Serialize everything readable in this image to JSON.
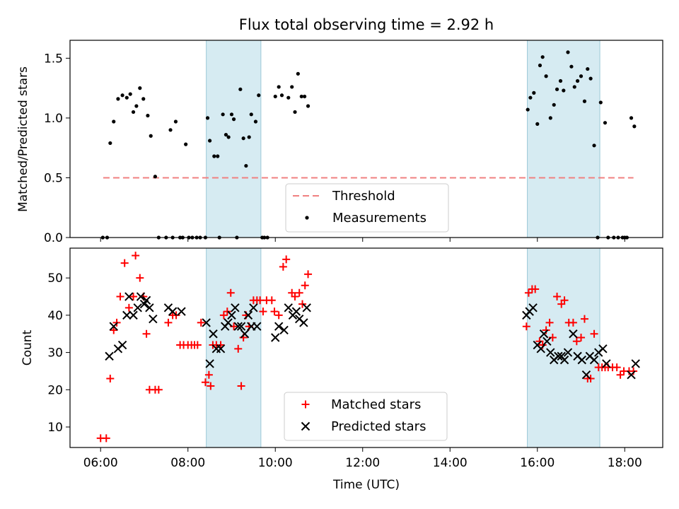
{
  "chart_data": [
    {
      "type": "scatter",
      "title": "Flux total observing time = 2.92 h",
      "xlabel": "",
      "ylabel": "Matched/Predicted stars",
      "xlim": [
        5.3,
        18.87
      ],
      "ylim": [
        0,
        1.65
      ],
      "yticks": [
        0.0,
        0.5,
        1.0,
        1.5
      ],
      "ytick_labels": [
        "0.0",
        "0.5",
        "1.0",
        "1.5"
      ],
      "shaded_spans": [
        [
          8.42,
          9.67
        ],
        [
          15.77,
          17.43
        ]
      ],
      "legend_placement": "lower-center",
      "series": [
        {
          "name": "Threshold",
          "style": "dashed-line",
          "color": "#f08080",
          "x": [
            6.06,
            18.2
          ],
          "y": [
            0.5,
            0.5
          ]
        },
        {
          "name": "Measurements",
          "style": "dot",
          "color": "#000000",
          "x": [
            6.05,
            6.15,
            6.22,
            6.3,
            6.4,
            6.5,
            6.6,
            6.68,
            6.75,
            6.82,
            6.9,
            6.98,
            7.08,
            7.15,
            7.25,
            7.33,
            7.5,
            7.6,
            7.65,
            7.72,
            7.82,
            7.88,
            7.95,
            8.02,
            8.1,
            8.2,
            8.28,
            8.4,
            8.45,
            8.5,
            8.6,
            8.68,
            8.72,
            8.8,
            8.87,
            8.93,
            9.0,
            9.05,
            9.12,
            9.2,
            9.27,
            9.33,
            9.4,
            9.45,
            9.55,
            9.62,
            9.7,
            9.75,
            9.82,
            10.0,
            10.08,
            10.15,
            10.3,
            10.38,
            10.45,
            10.52,
            10.6,
            10.67,
            10.75,
            15.78,
            15.84,
            15.92,
            16.0,
            16.06,
            16.12,
            16.2,
            16.3,
            16.38,
            16.45,
            16.53,
            16.6,
            16.7,
            16.78,
            16.85,
            16.92,
            17.0,
            17.08,
            17.15,
            17.22,
            17.3,
            17.38,
            17.45,
            17.55,
            17.62,
            17.75,
            17.85,
            17.95,
            18.0,
            18.05,
            18.15,
            18.22
          ],
          "y": [
            0.0,
            0.0,
            0.79,
            0.97,
            1.16,
            1.19,
            1.17,
            1.2,
            1.05,
            1.1,
            1.25,
            1.16,
            1.02,
            0.85,
            0.51,
            0.0,
            0.0,
            0.9,
            0.0,
            0.97,
            0.0,
            0.0,
            0.78,
            0.0,
            0.0,
            0.0,
            0.0,
            0.0,
            1.0,
            0.81,
            0.68,
            0.68,
            0.0,
            1.03,
            0.86,
            0.84,
            1.03,
            0.99,
            0.0,
            1.24,
            0.83,
            0.6,
            0.84,
            1.03,
            0.97,
            1.19,
            0.0,
            0.0,
            0.0,
            1.18,
            1.26,
            1.19,
            1.17,
            1.26,
            1.05,
            1.37,
            1.18,
            1.18,
            1.1,
            1.07,
            1.17,
            1.21,
            0.95,
            1.44,
            1.51,
            1.35,
            1.0,
            1.11,
            1.24,
            1.31,
            1.23,
            1.55,
            1.43,
            1.26,
            1.31,
            1.35,
            1.14,
            1.41,
            1.33,
            0.77,
            0.0,
            1.13,
            0.96,
            0.0,
            0.0,
            0.0,
            0.0,
            0.0,
            0.0,
            1.0,
            0.93
          ]
        }
      ]
    },
    {
      "type": "scatter",
      "title": "",
      "xlabel": "Time (UTC)",
      "ylabel": "Count",
      "xlim": [
        5.3,
        18.87
      ],
      "ylim": [
        4.5,
        58
      ],
      "yticks": [
        10,
        20,
        30,
        40,
        50
      ],
      "ytick_labels": [
        "10",
        "20",
        "30",
        "40",
        "50"
      ],
      "xticks": [
        6,
        8,
        10,
        12,
        14,
        16,
        18
      ],
      "xtick_labels": [
        "06:00",
        "08:00",
        "10:00",
        "12:00",
        "14:00",
        "16:00",
        "18:00"
      ],
      "shaded_spans": [
        [
          8.42,
          9.67
        ],
        [
          15.77,
          17.43
        ]
      ],
      "legend_placement": "lower-center",
      "series": [
        {
          "name": "Matched stars",
          "style": "plus",
          "color": "#ff0000",
          "x": [
            6.0,
            6.13,
            6.22,
            6.3,
            6.37,
            6.45,
            6.55,
            6.65,
            6.75,
            6.8,
            6.9,
            6.98,
            7.05,
            7.12,
            7.25,
            7.33,
            7.55,
            7.65,
            7.73,
            7.82,
            7.9,
            8.0,
            8.08,
            8.15,
            8.22,
            8.3,
            8.4,
            8.48,
            8.52,
            8.57,
            8.65,
            8.75,
            8.82,
            8.9,
            8.98,
            9.05,
            9.15,
            9.22,
            9.27,
            9.33,
            9.4,
            9.5,
            9.58,
            9.65,
            9.72,
            9.8,
            9.92,
            9.98,
            10.08,
            10.18,
            10.25,
            10.38,
            10.45,
            10.55,
            10.62,
            10.68,
            10.75,
            15.75,
            15.8,
            15.88,
            15.95,
            16.05,
            16.12,
            16.2,
            16.28,
            16.35,
            16.45,
            16.55,
            16.62,
            16.72,
            16.82,
            16.9,
            17.0,
            17.08,
            17.15,
            17.22,
            17.3,
            17.4,
            17.48,
            17.55,
            17.62,
            17.72,
            17.82,
            17.9,
            17.98,
            18.1,
            18.2
          ],
          "y": [
            7,
            7,
            23,
            36,
            38,
            45,
            54,
            42,
            45,
            56,
            50,
            45,
            35,
            20,
            20,
            20,
            38,
            40,
            40,
            32,
            32,
            32,
            32,
            32,
            32,
            38,
            22,
            24,
            21,
            32,
            32,
            32,
            40,
            41,
            46,
            37,
            31,
            21,
            34,
            40,
            37,
            44,
            44,
            44,
            41,
            44,
            44,
            41,
            40,
            53,
            55,
            46,
            45,
            46,
            43,
            48,
            51,
            37,
            46,
            47,
            47,
            33,
            32,
            36,
            38,
            34,
            45,
            43,
            44,
            38,
            38,
            33,
            34,
            39,
            23,
            23,
            35,
            26,
            26,
            26,
            26,
            26,
            26,
            24,
            25,
            25,
            25
          ]
        },
        {
          "name": "Predicted stars",
          "style": "x",
          "color": "#000000",
          "x": [
            6.2,
            6.3,
            6.4,
            6.5,
            6.6,
            6.65,
            6.75,
            6.85,
            6.92,
            7.0,
            7.05,
            7.12,
            7.2,
            7.55,
            7.65,
            7.85,
            8.42,
            8.5,
            8.58,
            8.65,
            8.75,
            8.85,
            8.92,
            9.0,
            9.08,
            9.15,
            9.22,
            9.3,
            9.38,
            9.45,
            9.5,
            9.58,
            10.0,
            10.08,
            10.2,
            10.3,
            10.4,
            10.48,
            10.55,
            10.65,
            10.72,
            15.75,
            15.82,
            15.9,
            16.0,
            16.08,
            16.15,
            16.22,
            16.3,
            16.38,
            16.48,
            16.55,
            16.62,
            16.7,
            16.82,
            16.92,
            17.02,
            17.12,
            17.2,
            17.3,
            17.4,
            17.5,
            17.58,
            18.15,
            18.25
          ],
          "y": [
            29,
            37,
            31,
            32,
            40,
            45,
            40,
            42,
            45,
            43,
            44,
            42,
            39,
            42,
            41,
            41,
            38,
            27,
            35,
            31,
            31,
            37,
            38,
            40,
            42,
            37,
            37,
            35,
            40,
            37,
            42,
            37,
            34,
            37,
            36,
            42,
            40,
            41,
            39,
            38,
            42,
            40,
            41,
            42,
            32,
            31,
            35,
            33,
            30,
            28,
            29,
            29,
            28,
            30,
            35,
            29,
            28,
            24,
            29,
            28,
            30,
            31,
            27,
            24,
            27
          ]
        }
      ]
    }
  ]
}
